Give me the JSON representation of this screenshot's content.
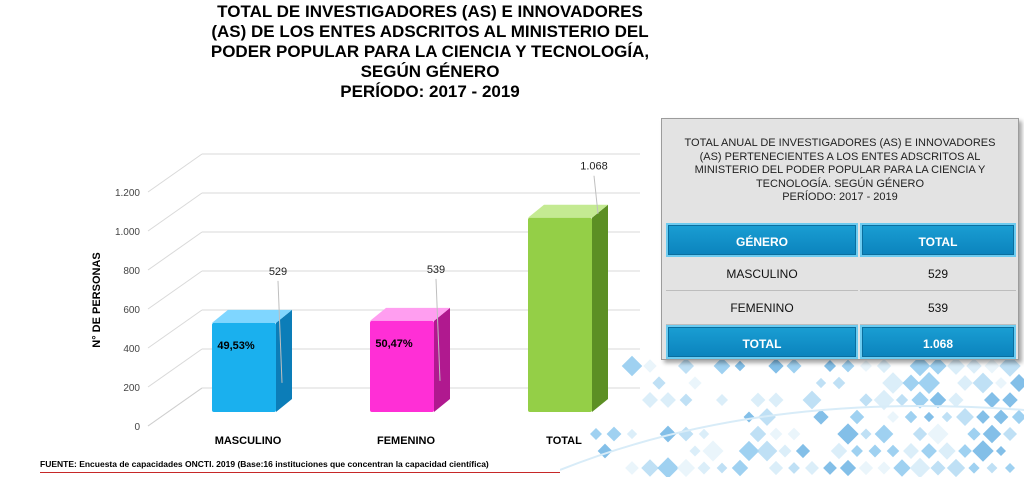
{
  "title": {
    "lines": [
      "TOTAL DE INVESTIGADORES (AS) E INNOVADORES",
      "(AS) DE LOS ENTES ADSCRITOS AL MINISTERIO DEL",
      "PODER POPULAR PARA LA CIENCIA Y TECNOLOGÍA,",
      "SEGÚN GÉNERO",
      "PERÍODO: 2017 -  2019"
    ]
  },
  "chart_data": {
    "type": "bar",
    "categories": [
      "MASCULINO",
      "FEMENINO",
      "TOTAL"
    ],
    "values": [
      529,
      539,
      1068
    ],
    "value_labels": [
      "529",
      "539",
      "1.068"
    ],
    "percent_labels": [
      "49,53%",
      "50,47%",
      ""
    ],
    "colors": [
      "#1ab0ee",
      "#ff2fd6",
      "#94cf47"
    ],
    "ylabel": "N° DE PERSONAS",
    "ylim": [
      0,
      1200
    ],
    "yticks": [
      0,
      200,
      400,
      600,
      800,
      1000,
      1200
    ],
    "ytick_labels": [
      "0",
      "200",
      "400",
      "600",
      "800",
      "1.000",
      "1.200"
    ],
    "grid": true
  },
  "table": {
    "title_lines": [
      "TOTAL ANUAL DE INVESTIGADORES (AS) E INNOVADORES",
      "(AS) PERTENECIENTES A LOS ENTES ADSCRITOS AL",
      "MINISTERIO DEL PODER POPULAR PARA LA CIENCIA Y",
      "TECNOLOGÍA. SEGÚN GÉNERO",
      "PERÍODO: 2017 -  2019"
    ],
    "header": [
      "GÉNERO",
      "TOTAL"
    ],
    "rows": [
      [
        "MASCULINO",
        "529"
      ],
      [
        "FEMENINO",
        "539"
      ]
    ],
    "total": [
      "TOTAL",
      "1.068"
    ]
  },
  "footer": "FUENTE: Encuesta de capacidades ONCTI. 2019 (Base:16 instituciones que concentran la capacidad científica)"
}
